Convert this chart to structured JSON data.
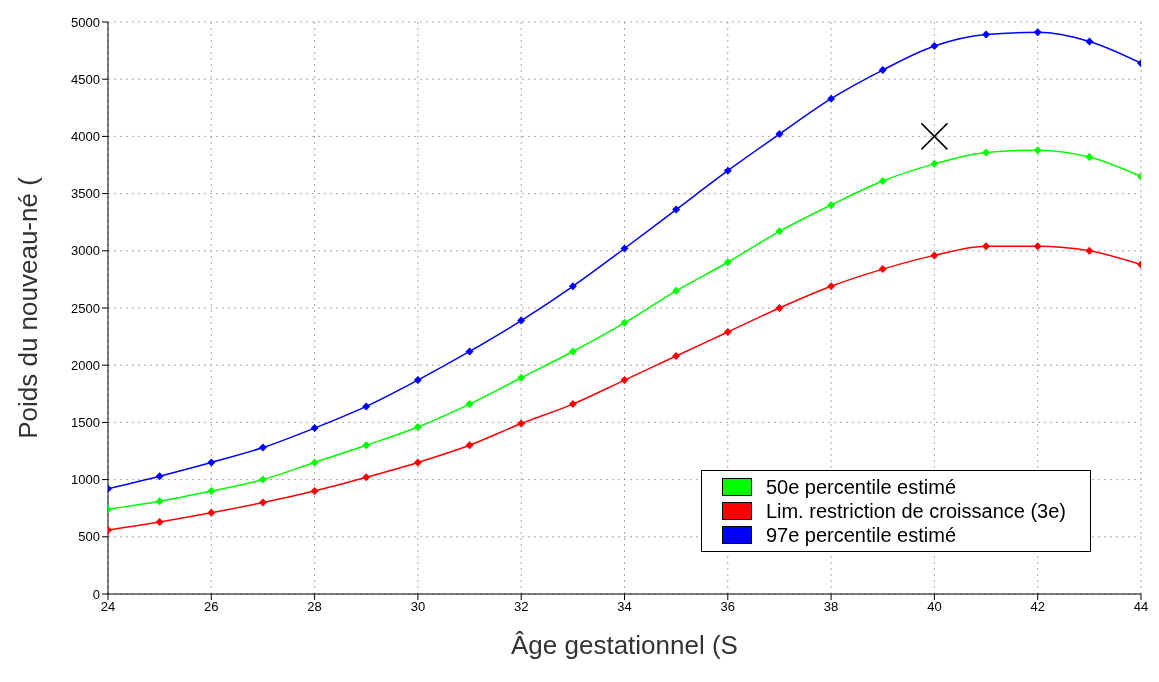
{
  "chart_data": {
    "type": "line",
    "xlabel": "Âge gestationnel (S",
    "ylabel": "Poids du nouveau-né (",
    "x": [
      24,
      25,
      26,
      27,
      28,
      29,
      30,
      31,
      32,
      33,
      34,
      35,
      36,
      37,
      38,
      39,
      40,
      41,
      42,
      43,
      44
    ],
    "series": [
      {
        "name": "50e percentile estimé",
        "color": "#00ff00",
        "values": [
          740,
          810,
          900,
          1000,
          1150,
          1300,
          1460,
          1660,
          1890,
          2120,
          2370,
          2650,
          2900,
          3170,
          3400,
          3610,
          3760,
          3860,
          3880,
          3820,
          3650
        ]
      },
      {
        "name": "Lim. restriction de croissance (3e)",
        "color": "#ff0000",
        "values": [
          560,
          630,
          710,
          800,
          900,
          1020,
          1150,
          1300,
          1490,
          1660,
          1870,
          2080,
          2290,
          2500,
          2690,
          2840,
          2960,
          3040,
          3040,
          3000,
          2880
        ]
      },
      {
        "name": "97e percentile estimé",
        "color": "#0000ff",
        "values": [
          920,
          1030,
          1150,
          1280,
          1450,
          1640,
          1870,
          2120,
          2390,
          2690,
          3020,
          3360,
          3700,
          4020,
          4330,
          4580,
          4790,
          4890,
          4910,
          4830,
          4640
        ]
      },
      {
        "type": "scatter",
        "color": "#000000",
        "marker": "cross",
        "x": [
          40
        ],
        "values": [
          4000
        ]
      }
    ],
    "xlim": [
      24,
      44
    ],
    "xticks": [
      24,
      26,
      28,
      30,
      32,
      34,
      36,
      38,
      40,
      42,
      44
    ],
    "ylim": [
      0,
      5000
    ],
    "yticks": [
      0,
      500,
      1000,
      1500,
      2000,
      2500,
      3000,
      3500,
      4000,
      4500,
      5000
    ],
    "grid": true,
    "legend": "bottom right",
    "marker": "diamond",
    "line_style": "solid"
  }
}
